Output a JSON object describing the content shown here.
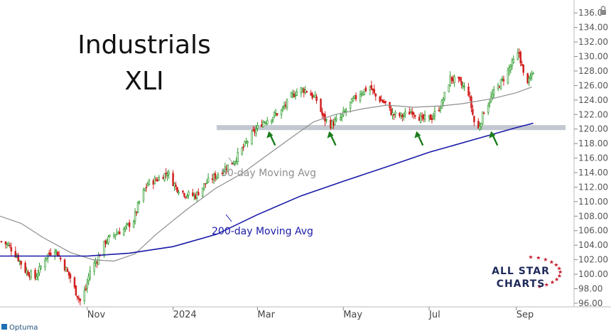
{
  "chart_data": {
    "type": "candlestick",
    "title": "Industrials",
    "subtitle": "XLI",
    "y_ticks": [
      96,
      98,
      100,
      102,
      104,
      106,
      108,
      110,
      112,
      114,
      116,
      118,
      120,
      122,
      124,
      126,
      128,
      130,
      132,
      134,
      136
    ],
    "y_tick_labels": [
      "96.00",
      "98.00",
      "100.00",
      "102.00",
      "104.00",
      "106.00",
      "108.00",
      "110.00",
      "112.00",
      "114.00",
      "116.00",
      "118.00",
      "120.00",
      "122.00",
      "124.00",
      "126.00",
      "128.00",
      "130.00",
      "132.00",
      "134.00",
      "136.0"
    ],
    "ylim": [
      95.5,
      137
    ],
    "x_labels": [
      "Nov",
      "2024",
      "Mar",
      "May",
      "Jul",
      "Sep"
    ],
    "x_range": [
      "2023-08-31",
      "2024-10-12"
    ],
    "x_label_dates": [
      "2023-11-01",
      "2024-01-01",
      "2024-03-01",
      "2024-05-01",
      "2024-07-01",
      "2024-09-01"
    ],
    "close_path": [
      [
        "2023-09-01",
        104.5
      ],
      [
        "2023-09-06",
        104.0
      ],
      [
        "2023-09-12",
        102.5
      ],
      [
        "2023-09-18",
        100.5
      ],
      [
        "2023-09-25",
        99.5
      ],
      [
        "2023-09-29",
        101.0
      ],
      [
        "2023-10-03",
        102.5
      ],
      [
        "2023-10-09",
        103.5
      ],
      [
        "2023-10-16",
        101.0
      ],
      [
        "2023-10-20",
        99.5
      ],
      [
        "2023-10-24",
        97.5
      ],
      [
        "2023-10-27",
        96.3
      ],
      [
        "2023-10-31",
        98.0
      ],
      [
        "2023-11-03",
        100.5
      ],
      [
        "2023-11-08",
        102.0
      ],
      [
        "2023-11-14",
        104.5
      ],
      [
        "2023-11-20",
        105.5
      ],
      [
        "2023-11-28",
        106.3
      ],
      [
        "2023-12-04",
        107.5
      ],
      [
        "2023-12-08",
        110.0
      ],
      [
        "2023-12-14",
        112.5
      ],
      [
        "2023-12-20",
        113.0
      ],
      [
        "2023-12-28",
        114.0
      ],
      [
        "2024-01-03",
        112.0
      ],
      [
        "2024-01-10",
        111.0
      ],
      [
        "2024-01-17",
        110.8
      ],
      [
        "2024-01-24",
        112.5
      ],
      [
        "2024-01-31",
        113.5
      ],
      [
        "2024-02-06",
        114.5
      ],
      [
        "2024-02-13",
        115.5
      ],
      [
        "2024-02-20",
        117.5
      ],
      [
        "2024-02-27",
        119.5
      ],
      [
        "2024-03-05",
        121.0
      ],
      [
        "2024-03-12",
        121.8
      ],
      [
        "2024-03-18",
        122.5
      ],
      [
        "2024-03-25",
        124.5
      ],
      [
        "2024-03-31",
        125.5
      ],
      [
        "2024-04-05",
        125.3
      ],
      [
        "2024-04-12",
        124.0
      ],
      [
        "2024-04-17",
        121.5
      ],
      [
        "2024-04-22",
        120.6
      ],
      [
        "2024-04-29",
        121.5
      ],
      [
        "2024-05-06",
        123.5
      ],
      [
        "2024-05-13",
        125.0
      ],
      [
        "2024-05-20",
        125.8
      ],
      [
        "2024-05-24",
        124.5
      ],
      [
        "2024-05-31",
        123.5
      ],
      [
        "2024-06-05",
        122.0
      ],
      [
        "2024-06-12",
        121.8
      ],
      [
        "2024-06-19",
        122.5
      ],
      [
        "2024-06-26",
        121.3
      ],
      [
        "2024-07-03",
        121.6
      ],
      [
        "2024-07-10",
        123.5
      ],
      [
        "2024-07-16",
        127.0
      ],
      [
        "2024-07-22",
        126.5
      ],
      [
        "2024-07-29",
        125.0
      ],
      [
        "2024-08-02",
        121.0
      ],
      [
        "2024-08-05",
        120.0
      ],
      [
        "2024-08-09",
        122.5
      ],
      [
        "2024-08-16",
        125.0
      ],
      [
        "2024-08-23",
        127.0
      ],
      [
        "2024-08-29",
        129.0
      ],
      [
        "2024-09-03",
        130.5
      ],
      [
        "2024-09-06",
        127.5
      ],
      [
        "2024-09-10",
        126.5
      ],
      [
        "2024-09-13",
        128.0
      ]
    ],
    "series": [
      {
        "name": "50-day Moving Avg",
        "color": "#8e8e8e",
        "points": [
          [
            "2023-08-31",
            108.0
          ],
          [
            "2023-09-15",
            107.0
          ],
          [
            "2023-10-01",
            105.0
          ],
          [
            "2023-10-20",
            103.0
          ],
          [
            "2023-11-05",
            102.0
          ],
          [
            "2023-11-20",
            101.8
          ],
          [
            "2023-12-05",
            102.8
          ],
          [
            "2023-12-20",
            105.5
          ],
          [
            "2024-01-10",
            108.8
          ],
          [
            "2024-01-31",
            111.8
          ],
          [
            "2024-02-20",
            114.0
          ],
          [
            "2024-03-05",
            116.0
          ],
          [
            "2024-03-25",
            118.8
          ],
          [
            "2024-04-10",
            121.0
          ],
          [
            "2024-04-25",
            122.0
          ],
          [
            "2024-05-15",
            122.8
          ],
          [
            "2024-06-01",
            123.3
          ],
          [
            "2024-06-20",
            123.0
          ],
          [
            "2024-07-10",
            123.2
          ],
          [
            "2024-07-25",
            123.5
          ],
          [
            "2024-08-15",
            124.2
          ],
          [
            "2024-09-01",
            125.0
          ],
          [
            "2024-09-12",
            125.8
          ]
        ]
      },
      {
        "name": "200-day Moving Avg",
        "color": "#1a1aa8",
        "points": [
          [
            "2023-08-31",
            102.5
          ],
          [
            "2023-10-01",
            102.5
          ],
          [
            "2023-11-01",
            102.5
          ],
          [
            "2023-12-01",
            102.9
          ],
          [
            "2024-01-01",
            103.8
          ],
          [
            "2024-02-01",
            105.5
          ],
          [
            "2024-03-01",
            108.2
          ],
          [
            "2024-04-01",
            110.8
          ],
          [
            "2024-05-01",
            112.8
          ],
          [
            "2024-06-01",
            114.8
          ],
          [
            "2024-07-01",
            116.8
          ],
          [
            "2024-08-01",
            118.5
          ],
          [
            "2024-09-01",
            120.2
          ],
          [
            "2024-09-13",
            120.8
          ]
        ]
      }
    ],
    "support_band": {
      "from_date": "2024-02-01",
      "to_date": "2024-10-06",
      "level": 120.2,
      "color": "#c3c8d0"
    },
    "arrows": [
      "2024-03-07",
      "2024-04-19",
      "2024-06-20",
      "2024-08-12"
    ],
    "arrow_color": "#1b7d1b",
    "candle_colors": {
      "up": "#2a9a2a",
      "down": "#d21f1f"
    },
    "grid": false
  },
  "labels": {
    "title": "Industrials",
    "subtitle": "XLI",
    "ma50": "50-day Moving Avg",
    "ma200": "200-day Moving Avg"
  },
  "logo": {
    "line1": "ALL STAR",
    "line2": "CHARTS",
    "color": "#1f2a5a",
    "star_color": "#c21a2b"
  },
  "footer": {
    "brand": "Optuma",
    "lock_icon": "lock-icon"
  },
  "colors": {
    "axis_line": "#bbbbbb",
    "tick_text": "#555555"
  }
}
